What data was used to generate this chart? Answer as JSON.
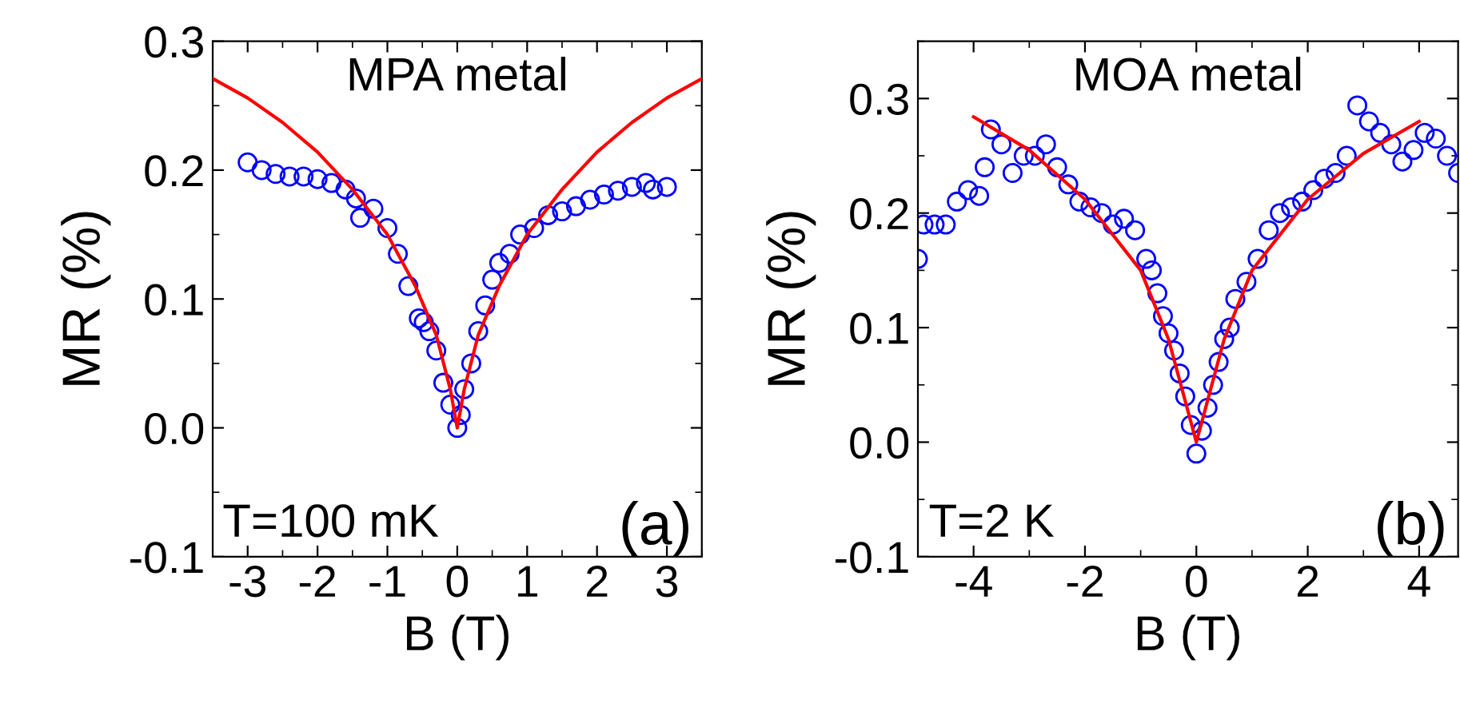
{
  "chart_data": [
    {
      "type": "scatter",
      "xlabel": "B (T)",
      "ylabel": "MR (%)",
      "xlim": [
        -3.5,
        3.5
      ],
      "ylim": [
        -0.1,
        0.3
      ],
      "xticks": [
        -3,
        -2,
        -1,
        0,
        1,
        2,
        3
      ],
      "yticks": [
        -0.1,
        {
          "value": 0,
          "label": "0.0"
        },
        0.1,
        0.2,
        0.3
      ],
      "grid": false,
      "legend": false,
      "annotations": [
        "MPA metal",
        "T=100 mK",
        "(a)"
      ],
      "series": [
        {
          "marker": "circle",
          "color": "#0000ff",
          "x": [
            -3.0,
            -2.8,
            -2.6,
            -2.4,
            -2.2,
            -2.0,
            -1.8,
            -1.6,
            -1.45,
            -1.39,
            -1.2,
            -1.0,
            -0.85,
            -0.7,
            -0.55,
            -0.48,
            -0.4,
            -0.3,
            -0.2,
            -0.1,
            0.0,
            0.05,
            0.1,
            0.2,
            0.3,
            0.4,
            0.5,
            0.6,
            0.75,
            0.9,
            1.1,
            1.3,
            1.5,
            1.7,
            1.9,
            2.1,
            2.3,
            2.5,
            2.7,
            2.8,
            3.0
          ],
          "values": [
            0.206,
            0.2,
            0.197,
            0.195,
            0.195,
            0.193,
            0.19,
            0.185,
            0.178,
            0.163,
            0.17,
            0.155,
            0.135,
            0.11,
            0.085,
            0.082,
            0.075,
            0.06,
            0.035,
            0.018,
            0.0,
            0.01,
            0.03,
            0.05,
            0.075,
            0.095,
            0.115,
            0.128,
            0.135,
            0.15,
            0.155,
            0.165,
            0.168,
            0.172,
            0.177,
            0.181,
            0.184,
            0.187,
            0.19,
            0.185,
            0.187
          ]
        },
        {
          "type": "line",
          "color": "#ff0000",
          "x": [
            -3.5,
            -3.0,
            -2.5,
            -2.0,
            -1.5,
            -1.0,
            -0.6,
            -0.3,
            -0.1,
            0.0,
            0.1,
            0.3,
            0.6,
            1.0,
            1.5,
            2.0,
            2.5,
            3.0,
            3.5
          ],
          "values": [
            0.271,
            0.256,
            0.237,
            0.214,
            0.185,
            0.15,
            0.11,
            0.072,
            0.03,
            0.0,
            0.03,
            0.072,
            0.11,
            0.15,
            0.185,
            0.214,
            0.237,
            0.256,
            0.271
          ]
        }
      ]
    },
    {
      "type": "scatter",
      "xlabel": "B (T)",
      "ylabel": "MR (%)",
      "xlim": [
        -5,
        4.7
      ],
      "ylim": [
        -0.1,
        0.35
      ],
      "xticks": [
        -4,
        -2,
        0,
        2,
        4
      ],
      "yticks": [
        -0.1,
        {
          "value": 0,
          "label": "0.0"
        },
        0.1,
        0.2,
        0.3
      ],
      "grid": false,
      "legend": false,
      "annotations": [
        "MOA metal",
        "T=2 K",
        "(b)"
      ],
      "series": [
        {
          "marker": "circle",
          "color": "#0000ff",
          "x": [
            -5.0,
            -4.9,
            -4.7,
            -4.5,
            -4.3,
            -4.1,
            -3.9,
            -3.8,
            -3.69,
            -3.5,
            -3.3,
            -3.1,
            -2.9,
            -2.7,
            -2.5,
            -2.3,
            -2.1,
            -1.9,
            -1.7,
            -1.5,
            -1.3,
            -1.1,
            -0.9,
            -0.8,
            -0.7,
            -0.6,
            -0.5,
            -0.4,
            -0.3,
            -0.2,
            -0.1,
            0.0,
            0.1,
            0.2,
            0.3,
            0.4,
            0.5,
            0.6,
            0.7,
            0.9,
            1.1,
            1.3,
            1.5,
            1.7,
            1.9,
            2.1,
            2.3,
            2.5,
            2.7,
            2.89,
            3.1,
            3.3,
            3.5,
            3.7,
            3.9,
            4.1,
            4.3,
            4.5,
            4.7
          ],
          "values": [
            0.16,
            0.19,
            0.19,
            0.19,
            0.21,
            0.22,
            0.215,
            0.24,
            0.273,
            0.26,
            0.235,
            0.25,
            0.25,
            0.26,
            0.24,
            0.225,
            0.21,
            0.205,
            0.2,
            0.19,
            0.195,
            0.185,
            0.16,
            0.15,
            0.13,
            0.11,
            0.095,
            0.08,
            0.06,
            0.04,
            0.015,
            -0.01,
            0.01,
            0.03,
            0.05,
            0.07,
            0.09,
            0.1,
            0.125,
            0.14,
            0.16,
            0.185,
            0.2,
            0.205,
            0.21,
            0.22,
            0.23,
            0.235,
            0.25,
            0.294,
            0.28,
            0.27,
            0.26,
            0.245,
            0.255,
            0.27,
            0.265,
            0.25,
            0.235
          ]
        },
        {
          "type": "line",
          "color": "#ff0000",
          "x": [
            -4.0,
            -3.0,
            -2.0,
            -1.0,
            -0.5,
            0.0,
            0.5,
            1.0,
            2.0,
            3.0,
            4.0
          ],
          "values": [
            0.284,
            0.255,
            0.212,
            0.15,
            0.09,
            0.0,
            0.09,
            0.15,
            0.212,
            0.252,
            0.28
          ]
        }
      ]
    }
  ]
}
